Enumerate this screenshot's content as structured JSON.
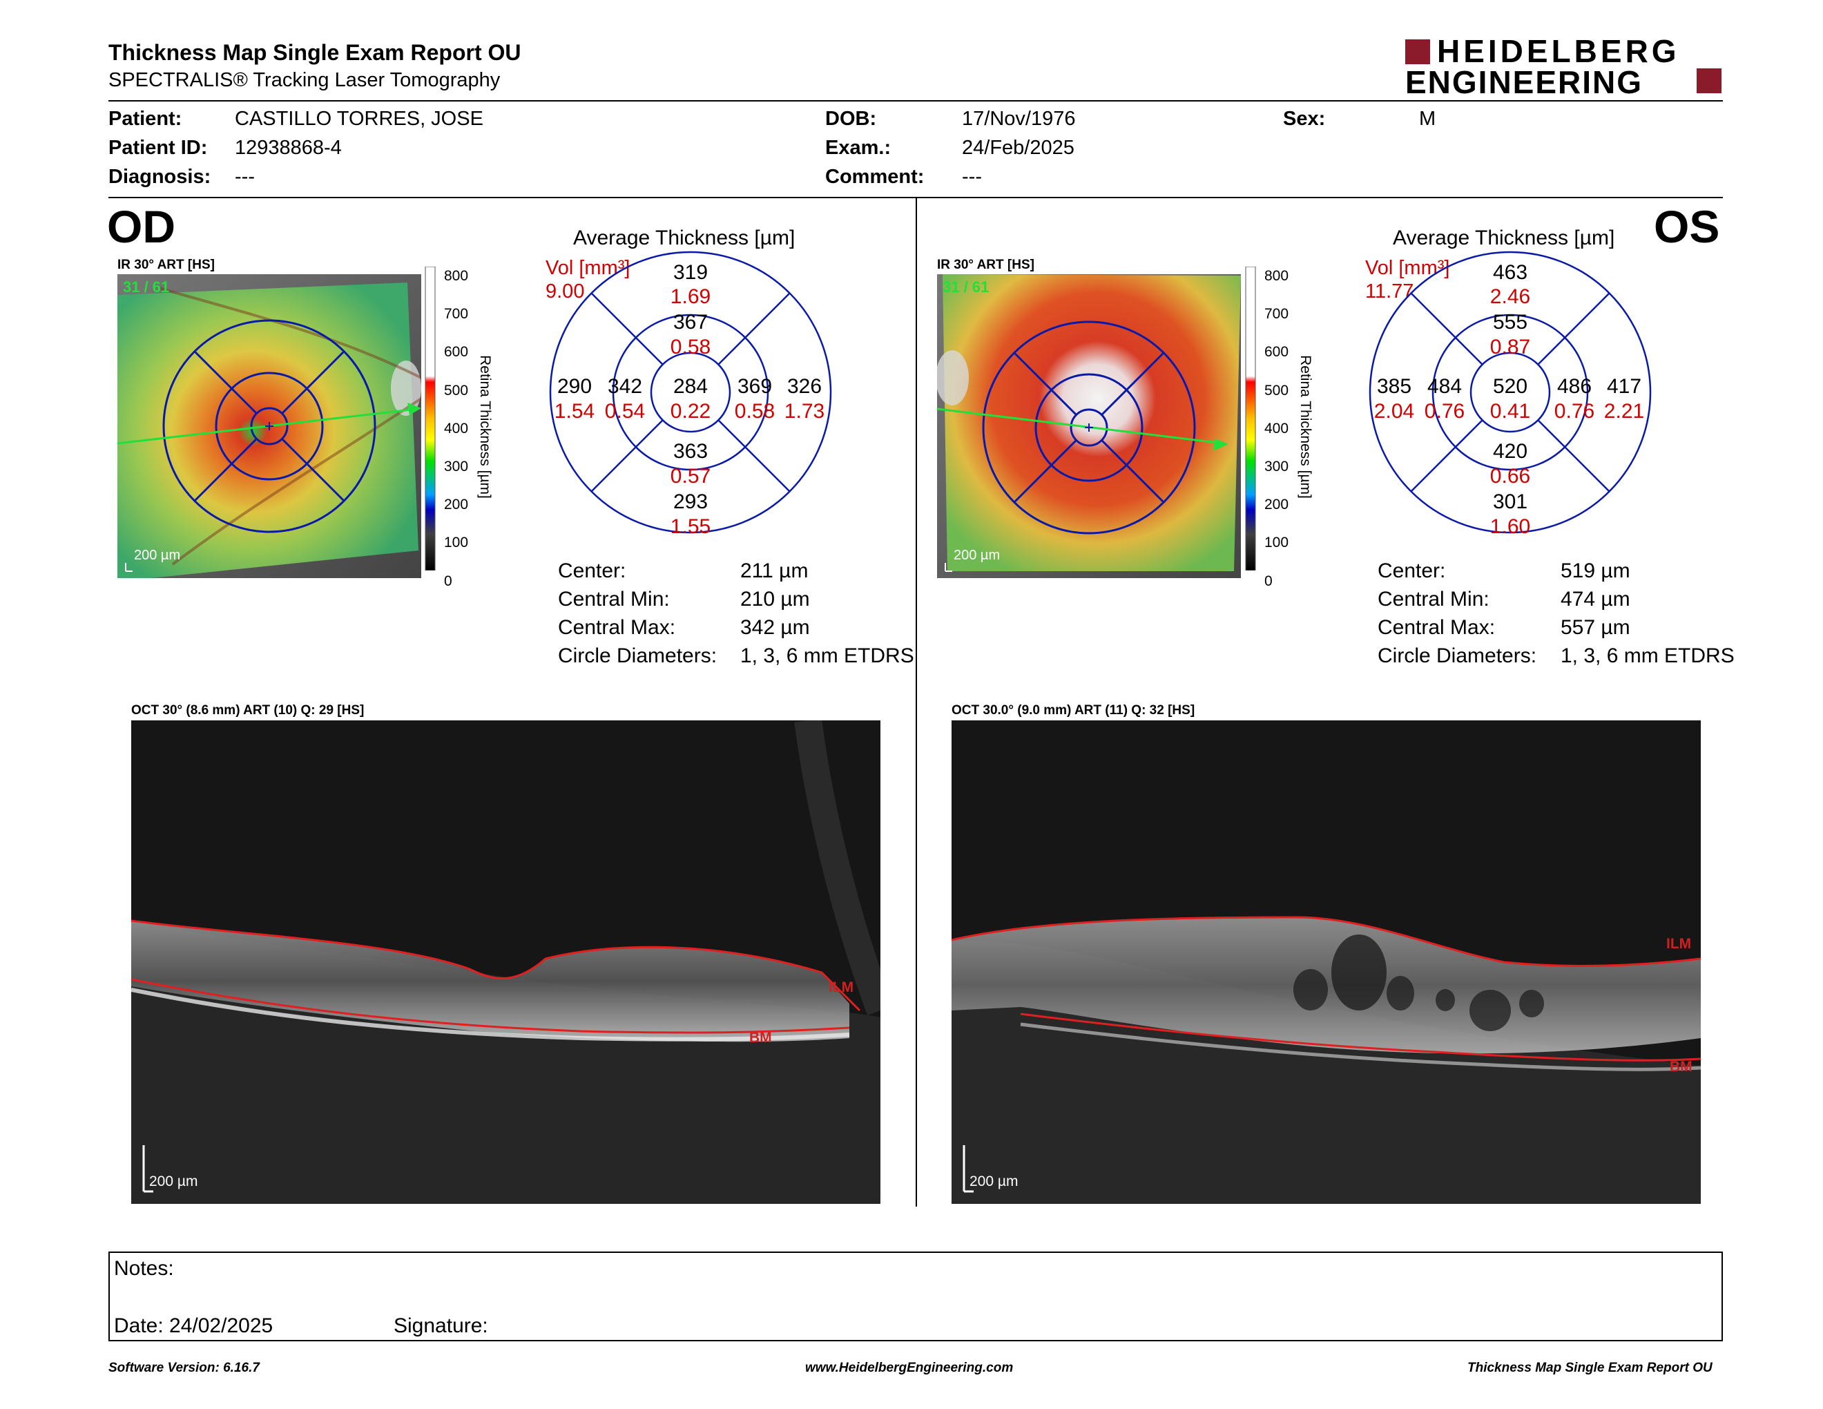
{
  "header": {
    "title": "Thickness Map Single Exam Report OU",
    "subtitle": "SPECTRALIS® Tracking Laser Tomography",
    "logo_line1": "HEIDELBERG",
    "logo_line2": "ENGINEERING"
  },
  "patient": {
    "patient_label": "Patient:",
    "patient_value": "CASTILLO TORRES, JOSE",
    "id_label": "Patient ID:",
    "id_value": "12938868-4",
    "diagnosis_label": "Diagnosis:",
    "diagnosis_value": "---",
    "dob_label": "DOB:",
    "dob_value": "17/Nov/1976",
    "exam_label": "Exam.:",
    "exam_value": "24/Feb/2025",
    "comment_label": "Comment:",
    "comment_value": "---",
    "sex_label": "Sex:",
    "sex_value": "M"
  },
  "scale": {
    "ticks": [
      "800",
      "700",
      "600",
      "500",
      "400",
      "300",
      "200",
      "100",
      "0"
    ],
    "axis_label": "Retina Thickness [µm]"
  },
  "od": {
    "eye": "OD",
    "ir_label": "IR 30° ART [HS]",
    "frames": "31 / 61",
    "scale_bar": "200 µm",
    "avg_title": "Average Thickness [µm]",
    "vol_label": "Vol [mm³]",
    "vol_total": "9.00",
    "etdrs": {
      "center_t": "284",
      "center_v": "0.22",
      "inner_sup_t": "367",
      "inner_sup_v": "0.58",
      "inner_inf_t": "363",
      "inner_inf_v": "0.57",
      "inner_left_t": "342",
      "inner_left_v": "0.54",
      "inner_right_t": "369",
      "inner_right_v": "0.58",
      "outer_sup_t": "319",
      "outer_sup_v": "1.69",
      "outer_inf_t": "293",
      "outer_inf_v": "1.55",
      "outer_left_t": "290",
      "outer_left_v": "1.54",
      "outer_right_t": "326",
      "outer_right_v": "1.73"
    },
    "stats": {
      "center_label": "Center:",
      "center_value": "211 µm",
      "min_label": "Central Min:",
      "min_value": "210 µm",
      "max_label": "Central Max:",
      "max_value": "342 µm",
      "circ_label": "Circle Diameters:",
      "circ_value": "1, 3, 6 mm ETDRS"
    },
    "oct_label": "OCT 30° (8.6 mm) ART (10) Q: 29 [HS]",
    "oct_scale": "200 µm",
    "ilm": "ILM",
    "bm": "BM"
  },
  "os": {
    "eye": "OS",
    "ir_label": "IR 30° ART [HS]",
    "frames": "31 / 61",
    "scale_bar": "200 µm",
    "avg_title": "Average Thickness [µm]",
    "vol_label": "Vol [mm³]",
    "vol_total": "11.77",
    "etdrs": {
      "center_t": "520",
      "center_v": "0.41",
      "inner_sup_t": "555",
      "inner_sup_v": "0.87",
      "inner_inf_t": "420",
      "inner_inf_v": "0.66",
      "inner_left_t": "484",
      "inner_left_v": "0.76",
      "inner_right_t": "486",
      "inner_right_v": "0.76",
      "outer_sup_t": "463",
      "outer_sup_v": "2.46",
      "outer_inf_t": "301",
      "outer_inf_v": "1.60",
      "outer_left_t": "385",
      "outer_left_v": "2.04",
      "outer_right_t": "417",
      "outer_right_v": "2.21"
    },
    "stats": {
      "center_label": "Center:",
      "center_value": "519 µm",
      "min_label": "Central Min:",
      "min_value": "474 µm",
      "max_label": "Central Max:",
      "max_value": "557 µm",
      "circ_label": "Circle Diameters:",
      "circ_value": "1, 3, 6 mm ETDRS"
    },
    "oct_label": "OCT 30.0° (9.0 mm) ART (11) Q: 32 [HS]",
    "oct_scale": "200 µm",
    "ilm": "ILM",
    "bm": "BM"
  },
  "notes": {
    "notes_label": "Notes:",
    "date_label": "Date: 24/02/2025",
    "signature_label": "Signature:"
  },
  "footer": {
    "software": "Software Version: 6.16.7",
    "website": "www.HeidelbergEngineering.com",
    "report": "Thickness Map Single Exam Report OU"
  },
  "colors": {
    "accent_red": "#8b1a2b",
    "circle_blue": "#0a1aa8",
    "value_red": "#d20000"
  }
}
